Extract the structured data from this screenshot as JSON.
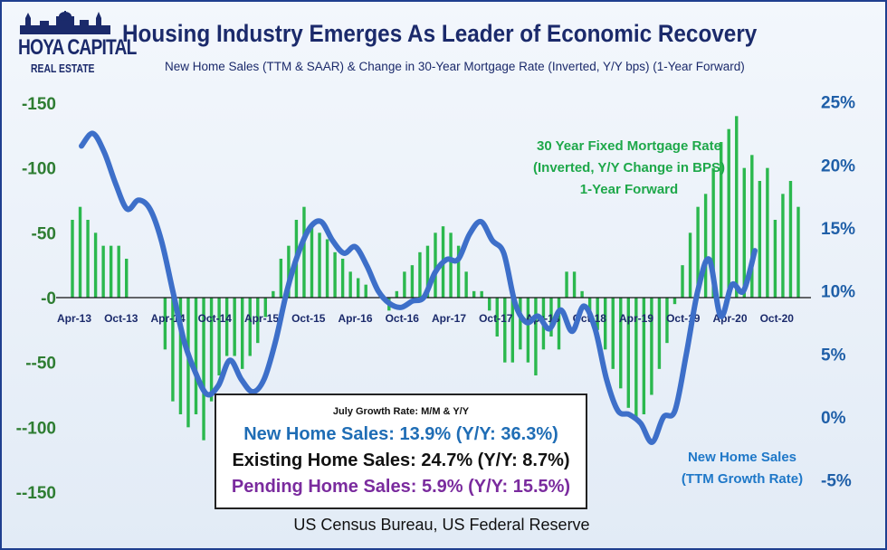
{
  "title": "Housing Industry Emerges As Leader of Economic Recovery",
  "subtitle": "New Home Sales (TTM & SAAR) & Change in 30-Year Mortgage Rate (Inverted, Y/Y bps) (1-Year Forward)",
  "logo": {
    "line1": "HOYA CAPITAL",
    "line2": "REAL ESTATE"
  },
  "annotations": {
    "rate_line1": "30 Year Fixed Mortgage Rate",
    "rate_line2": "(Inverted, Y/Y Change in BPS)",
    "rate_line3": "1-Year Forward",
    "sales_line1": "New Home Sales",
    "sales_line2": "(TTM Growth Rate)"
  },
  "infobox": {
    "header": "July Growth Rate: M/M & Y/Y",
    "new_home": "New Home Sales: 13.9% (Y/Y: 36.3%)",
    "existing": "Existing Home Sales: 24.7% (Y/Y: 8.7%)",
    "pending": "Pending Home Sales: 5.9% (Y/Y: 15.5%)"
  },
  "source": "US Census Bureau, US Federal Reserve",
  "colors": {
    "bars": "#2bb84e",
    "line": "#3d6fc9",
    "title": "#1b2a6b",
    "left_axis": "#2e7d32",
    "right_axis": "#1f5fa8"
  },
  "chart_data": {
    "type": "bar+line",
    "x_labels": [
      "Apr-13",
      "Oct-13",
      "Apr-14",
      "Oct-14",
      "Apr-15",
      "Oct-15",
      "Apr-16",
      "Oct-16",
      "Apr-17",
      "Oct-17",
      "Apr-18",
      "Oct-18",
      "Apr-19",
      "Oct-19",
      "Apr-20",
      "Oct-20"
    ],
    "left_axis": {
      "ticks": [
        "-150",
        "-100",
        "-50",
        "-0",
        "--50",
        "--100",
        "--150"
      ],
      "range": [
        -150,
        150
      ],
      "inverted": true
    },
    "right_axis": {
      "ticks": [
        "25%",
        "20%",
        "15%",
        "10%",
        "5%",
        "0%",
        "-5%"
      ],
      "range": [
        -5,
        25
      ]
    },
    "series": [
      {
        "name": "30 Year Fixed Mortgage Rate (Inverted, Y/Y Change in BPS) 1-Year Forward",
        "type": "bar",
        "axis": "left",
        "values": [
          60,
          70,
          60,
          50,
          40,
          40,
          40,
          30,
          0,
          0,
          0,
          0,
          -40,
          -80,
          -90,
          -100,
          -90,
          -110,
          -80,
          -60,
          -45,
          -45,
          -55,
          -45,
          -35,
          -15,
          5,
          30,
          40,
          60,
          70,
          55,
          50,
          45,
          35,
          30,
          20,
          15,
          10,
          0,
          0,
          -10,
          5,
          20,
          25,
          35,
          40,
          50,
          55,
          50,
          40,
          20,
          5,
          5,
          -10,
          -30,
          -50,
          -50,
          -40,
          -50,
          -60,
          -40,
          -30,
          -40,
          20,
          20,
          5,
          -10,
          -25,
          -40,
          -55,
          -70,
          -85,
          -95,
          -90,
          -75,
          -55,
          -35,
          -5,
          25,
          50,
          70,
          80,
          100,
          120,
          130,
          140,
          100,
          110,
          90,
          100,
          60,
          80,
          90,
          70
        ]
      },
      {
        "name": "New Home Sales (TTM Growth Rate)",
        "type": "line",
        "axis": "right",
        "values": [
          21.5,
          22.5,
          21,
          18.5,
          16.5,
          17.2,
          16.5,
          14,
          10,
          6,
          3.5,
          1.8,
          2.5,
          4.5,
          3,
          2,
          3,
          6,
          10,
          13,
          15,
          15.5,
          14,
          13,
          13.5,
          12,
          10,
          9,
          8.7,
          9.2,
          9.5,
          11.5,
          12.5,
          12.5,
          14.5,
          15.5,
          14,
          13,
          9,
          7.5,
          8,
          7,
          8.5,
          6.8,
          8.8,
          7,
          3,
          0.5,
          0.2,
          -0.5,
          -2,
          0,
          0.5,
          5,
          10,
          12.5,
          8,
          10.5,
          10,
          13.2
        ]
      }
    ]
  }
}
